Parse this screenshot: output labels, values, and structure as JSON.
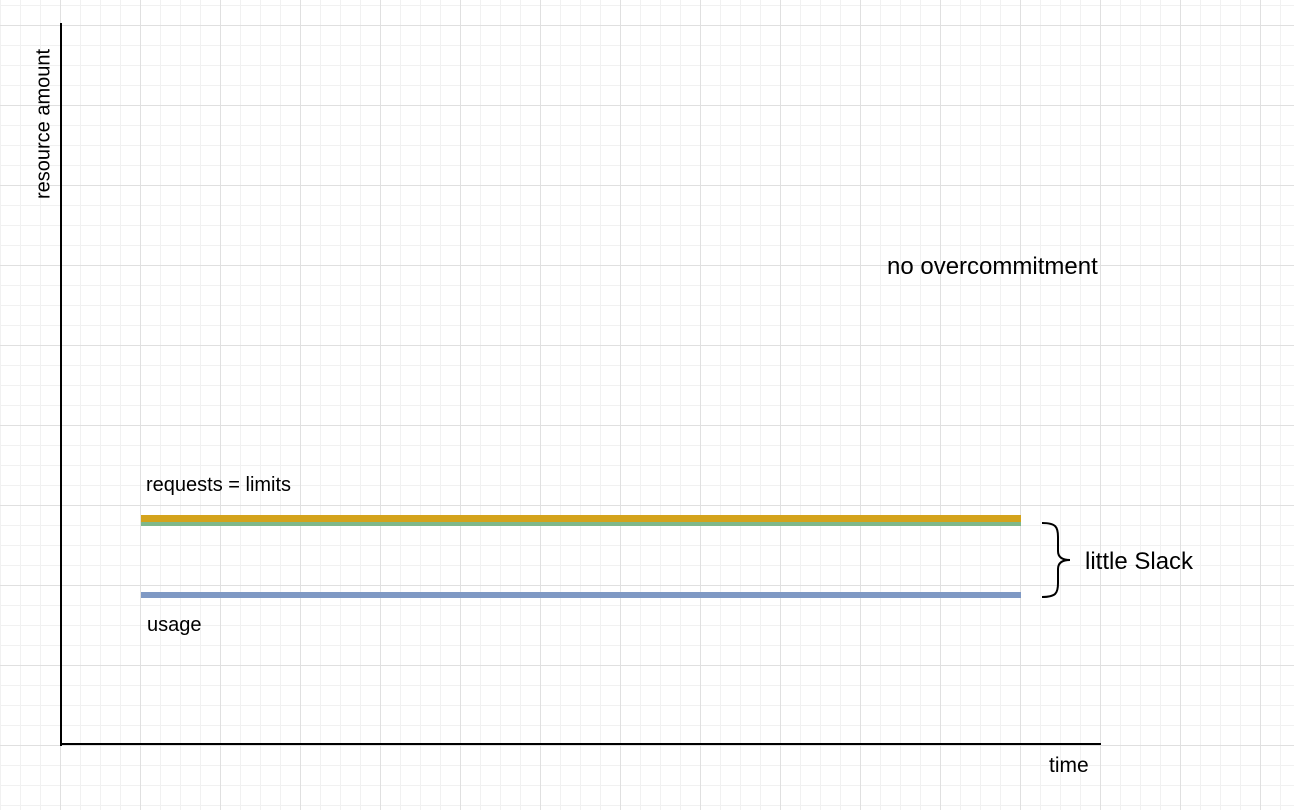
{
  "diagram": {
    "title": "no overcommitment",
    "y_axis_label": "resource amount",
    "x_axis_label": "time",
    "requests_label": "requests = limits",
    "usage_label": "usage",
    "slack_label": "little Slack"
  },
  "colors": {
    "limits_line": "#d4a31c",
    "requests_line": "#7fb88a",
    "usage_line": "#7f99c4",
    "axis": "#000000",
    "grid_major": "#e0e0e0",
    "grid_minor": "#f1f1f1"
  }
}
